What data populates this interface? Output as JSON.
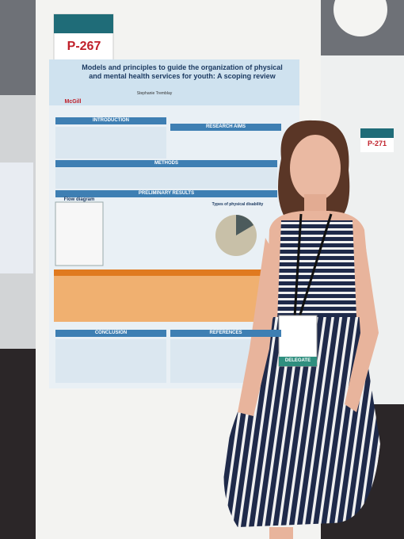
{
  "sign": {
    "poster_number": "P-267",
    "neighbor_number": "P-271"
  },
  "poster": {
    "title": "Models and principles to guide the organization of physical and mental health services for youth: A scoping review",
    "author": "Stephanie Tremblay",
    "logo": "McGill",
    "sections": [
      "INTRODUCTION",
      "RESEARCH AIMS",
      "METHODS",
      "PRELIMINARY RESULTS",
      "CONCLUSION",
      "REFERENCES"
    ],
    "flow_title": "Flow diagram",
    "pie_title": "Types of physical disability"
  },
  "badge": {
    "role": "DELEGATE"
  }
}
